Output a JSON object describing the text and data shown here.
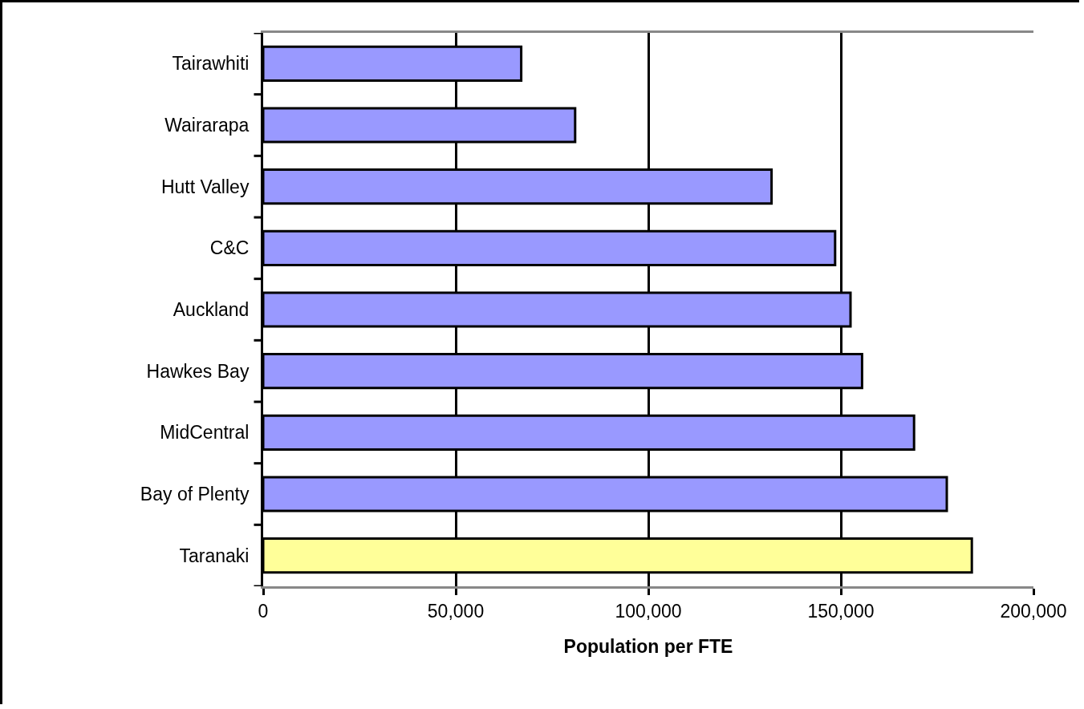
{
  "chart_data": {
    "type": "bar",
    "orientation": "horizontal",
    "xlabel": "Population per FTE",
    "categories": [
      "Tairawhiti",
      "Wairarapa",
      "Hutt Valley",
      "C&C",
      "Auckland",
      "Hawkes Bay",
      "MidCentral",
      "Bay of Plenty",
      "Taranaki"
    ],
    "values": [
      67000,
      81000,
      132000,
      148500,
      152500,
      155500,
      169000,
      177500,
      184000
    ],
    "colors": [
      "#9999ff",
      "#9999ff",
      "#9999ff",
      "#9999ff",
      "#9999ff",
      "#9999ff",
      "#9999ff",
      "#9999ff",
      "#ffff99"
    ],
    "xlim": [
      0,
      200000
    ],
    "xticks": [
      0,
      {
        "value": 50000,
        "label": "50,000"
      },
      {
        "value": 100000,
        "label": "100,000"
      },
      {
        "value": 150000,
        "label": "150,000"
      },
      {
        "value": 200000,
        "label": "200,000"
      }
    ],
    "grid": "x"
  }
}
